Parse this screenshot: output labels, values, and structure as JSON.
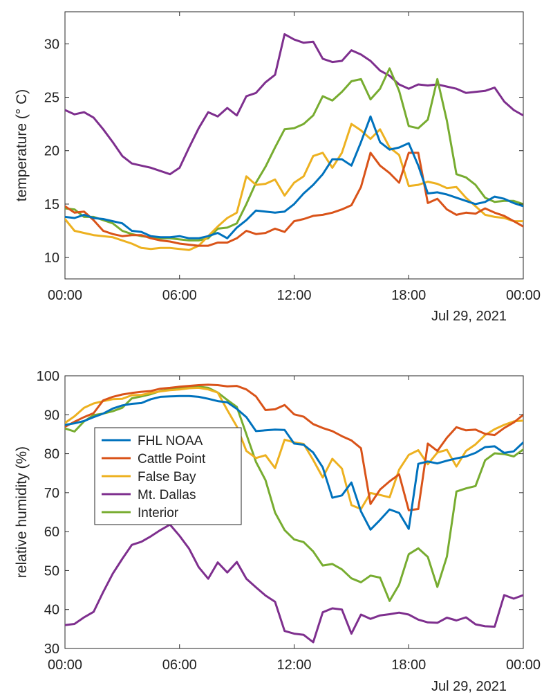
{
  "chart_data": [
    {
      "type": "line",
      "ylabel": "temperature (° C)",
      "xlabel": "",
      "date_label": "Jul 29, 2021",
      "xlim": [
        0,
        24
      ],
      "ylim": [
        8,
        33
      ],
      "x_ticks": [
        0,
        6,
        12,
        18,
        24
      ],
      "x_tick_labels": [
        "00:00",
        "06:00",
        "12:00",
        "18:00",
        "00:00"
      ],
      "y_ticks": [
        10,
        15,
        20,
        25,
        30
      ],
      "y_tick_labels": [
        "10",
        "15",
        "20",
        "25",
        "30"
      ],
      "grid": false,
      "series": [
        {
          "name": "Mt. Dallas",
          "color": "#7E2F8E",
          "x": [
            0,
            0.5,
            1,
            1.5,
            2,
            2.5,
            3,
            3.5,
            4,
            4.5,
            5,
            5.5,
            6,
            6.5,
            7,
            7.5,
            8,
            8.5,
            9,
            9.5,
            10,
            10.5,
            11,
            11.5,
            12,
            12.5,
            13,
            13.5,
            14,
            14.5,
            15,
            15.5,
            16,
            16.5,
            17,
            17.5,
            18,
            18.5,
            19,
            19.5,
            20,
            20.5,
            21,
            21.5,
            22,
            22.5,
            23,
            23.5,
            24
          ],
          "y": [
            23.8,
            23.4,
            23.6,
            23.1,
            22.0,
            20.8,
            19.5,
            18.8,
            18.6,
            18.4,
            18.1,
            17.8,
            18.4,
            20.3,
            22.1,
            23.6,
            23.2,
            24.0,
            23.3,
            25.1,
            25.4,
            26.4,
            27.1,
            30.9,
            30.4,
            30.1,
            30.2,
            28.6,
            28.3,
            28.4,
            29.4,
            29.0,
            28.4,
            27.5,
            27.0,
            26.2,
            25.8,
            26.2,
            26.1,
            26.2,
            26.0,
            25.8,
            25.4,
            25.5,
            25.6,
            25.9,
            24.6,
            23.8,
            23.3
          ]
        },
        {
          "name": "Interior",
          "color": "#77AC30",
          "x": [
            0,
            0.5,
            1,
            1.5,
            2,
            2.5,
            3,
            3.5,
            4,
            4.5,
            5,
            5.5,
            6,
            6.5,
            7,
            7.5,
            8,
            8.5,
            9,
            9.5,
            10,
            10.5,
            11,
            11.5,
            12,
            12.5,
            13,
            13.5,
            14,
            14.5,
            15,
            15.5,
            16,
            16.5,
            17,
            17.5,
            18,
            18.5,
            19,
            19.5,
            20,
            20.5,
            21,
            21.5,
            22,
            22.5,
            23,
            23.5,
            24
          ],
          "y": [
            14.6,
            14.5,
            13.8,
            13.8,
            13.5,
            13.2,
            12.5,
            12.2,
            12.0,
            11.9,
            11.8,
            11.8,
            11.7,
            11.6,
            11.6,
            11.8,
            12.7,
            12.8,
            13.2,
            15.0,
            17.0,
            18.5,
            20.3,
            22.0,
            22.1,
            22.5,
            23.3,
            25.1,
            24.7,
            25.5,
            26.5,
            26.7,
            24.8,
            25.8,
            27.7,
            25.6,
            22.3,
            22.1,
            22.9,
            26.7,
            22.8,
            17.8,
            17.5,
            16.8,
            15.6,
            15.2,
            15.3,
            15.3,
            15.0
          ]
        },
        {
          "name": "False Bay",
          "color": "#EDB120",
          "x": [
            0,
            0.5,
            1,
            1.5,
            2,
            2.5,
            3,
            3.5,
            4,
            4.5,
            5,
            5.5,
            6,
            6.5,
            7,
            7.5,
            8,
            8.5,
            9,
            9.5,
            10,
            10.5,
            11,
            11.5,
            12,
            12.5,
            13,
            13.5,
            14,
            14.5,
            15,
            15.5,
            16,
            16.5,
            17,
            17.5,
            18,
            18.5,
            19,
            19.5,
            20,
            20.5,
            21,
            21.5,
            22,
            22.5,
            23,
            23.5,
            24
          ],
          "y": [
            13.6,
            12.5,
            12.3,
            12.1,
            12.0,
            11.9,
            11.6,
            11.3,
            10.9,
            10.8,
            10.9,
            10.9,
            10.8,
            10.7,
            11.1,
            12.0,
            12.9,
            13.7,
            14.2,
            17.6,
            16.8,
            16.9,
            17.3,
            15.8,
            17.0,
            17.6,
            19.5,
            19.8,
            18.4,
            19.8,
            22.5,
            21.9,
            21.1,
            22.0,
            20.3,
            19.6,
            16.7,
            16.8,
            17.1,
            16.9,
            16.5,
            16.6,
            15.6,
            14.8,
            14.0,
            13.8,
            13.7,
            13.4,
            13.4
          ]
        },
        {
          "name": "Cattle Point",
          "color": "#D95319",
          "x": [
            0,
            0.5,
            1,
            1.5,
            2,
            2.5,
            3,
            3.5,
            4,
            4.5,
            5,
            5.5,
            6,
            6.5,
            7,
            7.5,
            8,
            8.5,
            9,
            9.5,
            10,
            10.5,
            11,
            11.5,
            12,
            12.5,
            13,
            13.5,
            14,
            14.5,
            15,
            15.5,
            16,
            16.5,
            17,
            17.5,
            18,
            18.5,
            19,
            19.5,
            20,
            20.5,
            21,
            21.5,
            22,
            22.5,
            23,
            23.5,
            24
          ],
          "y": [
            14.8,
            14.2,
            14.3,
            13.5,
            12.5,
            12.2,
            12.0,
            12.1,
            12.1,
            11.8,
            11.6,
            11.5,
            11.3,
            11.2,
            11.1,
            11.1,
            11.4,
            11.4,
            11.8,
            12.5,
            12.2,
            12.3,
            12.7,
            12.4,
            13.4,
            13.6,
            13.9,
            14.0,
            14.2,
            14.5,
            14.9,
            16.6,
            19.8,
            18.6,
            17.9,
            17.0,
            19.8,
            19.8,
            15.1,
            15.5,
            14.5,
            14.0,
            14.2,
            14.1,
            14.6,
            14.2,
            13.9,
            13.4,
            12.9
          ]
        },
        {
          "name": "FHL NOAA",
          "color": "#0072BD",
          "x": [
            0,
            0.5,
            1,
            1.5,
            2,
            2.5,
            3,
            3.5,
            4,
            4.5,
            5,
            5.5,
            6,
            6.5,
            7,
            7.5,
            8,
            8.5,
            9,
            9.5,
            10,
            10.5,
            11,
            11.5,
            12,
            12.5,
            13,
            13.5,
            14,
            14.5,
            15,
            15.5,
            16,
            16.5,
            17,
            17.5,
            18,
            18.5,
            19,
            19.5,
            20,
            20.5,
            21,
            21.5,
            22,
            22.5,
            23,
            23.5,
            24
          ],
          "y": [
            13.8,
            13.7,
            14.0,
            13.7,
            13.6,
            13.4,
            13.2,
            12.5,
            12.4,
            12.0,
            11.9,
            11.9,
            12.0,
            11.8,
            11.8,
            12.0,
            12.3,
            11.8,
            12.8,
            13.5,
            14.4,
            14.3,
            14.2,
            14.3,
            15.0,
            16.0,
            16.8,
            17.8,
            19.2,
            19.2,
            18.6,
            20.8,
            23.2,
            20.8,
            20.1,
            20.3,
            20.7,
            18.6,
            16.0,
            16.1,
            15.9,
            15.6,
            15.3,
            15.0,
            15.2,
            15.7,
            15.5,
            15.1,
            14.8
          ]
        }
      ]
    },
    {
      "type": "line",
      "ylabel": "relative humidity (%)",
      "xlabel": "",
      "date_label": "Jul 29, 2021",
      "xlim": [
        0,
        24
      ],
      "ylim": [
        30,
        100
      ],
      "x_ticks": [
        0,
        6,
        12,
        18,
        24
      ],
      "x_tick_labels": [
        "00:00",
        "06:00",
        "12:00",
        "18:00",
        "00:00"
      ],
      "y_ticks": [
        30,
        40,
        50,
        60,
        70,
        80,
        90,
        100
      ],
      "y_tick_labels": [
        "30",
        "40",
        "50",
        "60",
        "70",
        "80",
        "90",
        "100"
      ],
      "grid": false,
      "legend": {
        "position": "left",
        "order": [
          "FHL NOAA",
          "Cattle Point",
          "False Bay",
          "Mt. Dallas",
          "Interior"
        ]
      },
      "series": [
        {
          "name": "Mt. Dallas",
          "color": "#7E2F8E",
          "x": [
            0,
            0.5,
            1,
            1.5,
            2,
            2.5,
            3,
            3.5,
            4,
            4.5,
            5,
            5.5,
            6,
            6.5,
            7,
            7.5,
            8,
            8.5,
            9,
            9.5,
            10,
            10.5,
            11,
            11.5,
            12,
            12.5,
            13,
            13.5,
            14,
            14.5,
            15,
            15.5,
            16,
            16.5,
            17,
            17.5,
            18,
            18.5,
            19,
            19.5,
            20,
            20.5,
            21,
            21.5,
            22,
            22.5,
            23,
            23.5,
            24
          ],
          "y": [
            36.0,
            36.3,
            38.0,
            39.4,
            44.5,
            49.2,
            53.0,
            56.6,
            57.4,
            58.8,
            60.4,
            61.8,
            58.9,
            55.6,
            50.9,
            47.9,
            52.1,
            49.5,
            52.2,
            47.9,
            45.7,
            43.6,
            42.0,
            34.5,
            33.8,
            33.5,
            31.6,
            39.3,
            40.3,
            40.0,
            33.8,
            38.7,
            37.6,
            38.5,
            38.8,
            39.2,
            38.7,
            37.4,
            36.7,
            36.6,
            37.9,
            37.2,
            38.0,
            36.2,
            35.7,
            35.6,
            43.7,
            42.8,
            43.7
          ]
        },
        {
          "name": "Interior",
          "color": "#77AC30",
          "x": [
            0,
            0.5,
            1,
            1.5,
            2,
            2.5,
            3,
            3.5,
            4,
            4.5,
            5,
            5.5,
            6,
            6.5,
            7,
            7.5,
            8,
            8.5,
            9,
            9.5,
            10,
            10.5,
            11,
            11.5,
            12,
            12.5,
            13,
            13.5,
            14,
            14.5,
            15,
            15.5,
            16,
            16.5,
            17,
            17.5,
            18,
            18.5,
            19,
            19.5,
            20,
            20.5,
            21,
            21.5,
            22,
            22.5,
            23,
            23.5,
            24
          ],
          "y": [
            86.5,
            85.7,
            88.3,
            89.9,
            90.3,
            90.9,
            91.8,
            94.2,
            94.7,
            95.3,
            96.1,
            96.5,
            96.8,
            97.0,
            97.2,
            96.9,
            95.7,
            93.8,
            92.0,
            85.0,
            77.9,
            73.2,
            64.9,
            60.4,
            58.0,
            57.3,
            54.9,
            51.3,
            51.7,
            50.3,
            48.0,
            47.0,
            48.7,
            48.2,
            42.2,
            46.4,
            54.2,
            55.7,
            53.5,
            45.8,
            53.6,
            70.3,
            71.1,
            71.7,
            78.3,
            80.1,
            79.9,
            79.3,
            81.1
          ]
        },
        {
          "name": "False Bay",
          "color": "#EDB120",
          "x": [
            0,
            0.5,
            1,
            1.5,
            2,
            2.5,
            3,
            3.5,
            4,
            4.5,
            5,
            5.5,
            6,
            6.5,
            7,
            7.5,
            8,
            8.5,
            9,
            9.5,
            10,
            10.5,
            11,
            11.5,
            12,
            12.5,
            13,
            13.5,
            14,
            14.5,
            15,
            15.5,
            16,
            16.5,
            17,
            17.5,
            18,
            18.5,
            19,
            19.5,
            20,
            20.5,
            21,
            21.5,
            22,
            22.5,
            23,
            23.5,
            24
          ],
          "y": [
            87.9,
            89.6,
            91.8,
            92.9,
            93.5,
            94.0,
            94.1,
            95.0,
            95.1,
            95.6,
            96.0,
            96.3,
            96.5,
            96.8,
            96.9,
            96.5,
            95.7,
            91.2,
            87.0,
            80.7,
            78.9,
            79.6,
            76.3,
            83.6,
            82.9,
            82.5,
            78.4,
            73.9,
            78.7,
            76.2,
            66.8,
            65.8,
            69.9,
            69.4,
            68.8,
            75.9,
            79.7,
            80.9,
            77.3,
            80.3,
            81.0,
            76.7,
            80.7,
            82.4,
            84.8,
            86.3,
            87.4,
            88.3,
            88.5
          ]
        },
        {
          "name": "Cattle Point",
          "color": "#D95319",
          "x": [
            0,
            0.5,
            1,
            1.5,
            2,
            2.5,
            3,
            3.5,
            4,
            4.5,
            5,
            5.5,
            6,
            6.5,
            7,
            7.5,
            8,
            8.5,
            9,
            9.5,
            10,
            10.5,
            11,
            11.5,
            12,
            12.5,
            13,
            13.5,
            14,
            14.5,
            15,
            15.5,
            16,
            16.5,
            17,
            17.5,
            18,
            18.5,
            19,
            19.5,
            20,
            20.5,
            21,
            21.5,
            22,
            22.5,
            23,
            23.5,
            24
          ],
          "y": [
            86.9,
            88.2,
            89.4,
            90.4,
            93.7,
            94.6,
            95.2,
            95.6,
            95.9,
            96.1,
            96.7,
            96.9,
            97.2,
            97.4,
            97.6,
            97.7,
            97.6,
            97.3,
            97.4,
            96.5,
            94.7,
            91.2,
            91.4,
            92.5,
            90.1,
            89.5,
            87.6,
            86.6,
            85.8,
            84.5,
            83.4,
            81.4,
            67.1,
            70.8,
            72.9,
            74.7,
            65.5,
            65.8,
            82.6,
            80.7,
            84.1,
            86.8,
            86.0,
            86.2,
            85.1,
            84.8,
            86.6,
            88.0,
            90.0
          ]
        },
        {
          "name": "FHL NOAA",
          "color": "#0072BD",
          "x": [
            0,
            0.5,
            1,
            1.5,
            2,
            2.5,
            3,
            3.5,
            4,
            4.5,
            5,
            5.5,
            6,
            6.5,
            7,
            7.5,
            8,
            8.5,
            9,
            9.5,
            10,
            10.5,
            11,
            11.5,
            12,
            12.5,
            13,
            13.5,
            14,
            14.5,
            15,
            15.5,
            16,
            16.5,
            17,
            17.5,
            18,
            18.5,
            19,
            19.5,
            20,
            20.5,
            21,
            21.5,
            22,
            22.5,
            23,
            23.5,
            24
          ],
          "y": [
            87.4,
            87.8,
            88.4,
            89.4,
            90.3,
            91.6,
            92.4,
            92.8,
            93.0,
            94.0,
            94.6,
            94.7,
            94.8,
            94.8,
            94.6,
            94.1,
            93.5,
            93.2,
            91.5,
            89.4,
            85.8,
            86.0,
            86.2,
            86.1,
            82.6,
            82.3,
            80.3,
            76.5,
            68.7,
            69.3,
            72.6,
            65.2,
            60.5,
            63.0,
            65.7,
            64.8,
            60.7,
            77.4,
            78.0,
            77.5,
            78.2,
            78.8,
            79.3,
            80.2,
            81.7,
            81.9,
            80.2,
            80.6,
            82.9
          ]
        }
      ]
    }
  ]
}
